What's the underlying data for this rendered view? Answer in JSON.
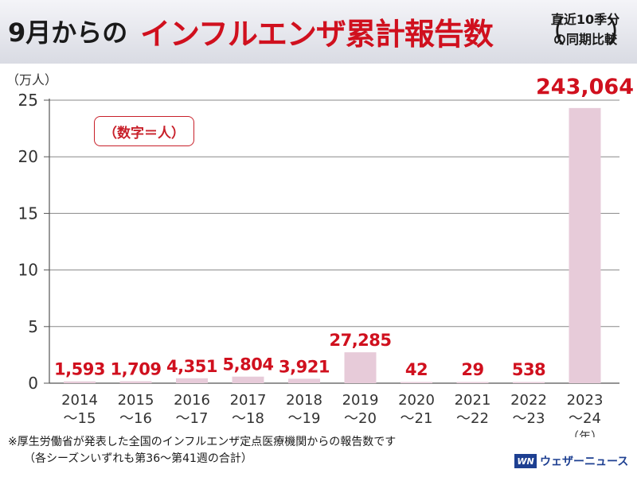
{
  "header": {
    "title_prefix": "9月からの",
    "title_main": "インフルエンザ累計報告数",
    "note_line1": "直近10季分",
    "note_line2": "の同期比較",
    "note_paren_open": "（",
    "note_paren_close": "）"
  },
  "unit_badge": "（数字＝人）",
  "chart_data": {
    "type": "bar",
    "categories": [
      [
        "2014",
        "〜15"
      ],
      [
        "2015",
        "〜16"
      ],
      [
        "2016",
        "〜17"
      ],
      [
        "2017",
        "〜18"
      ],
      [
        "2018",
        "〜19"
      ],
      [
        "2019",
        "〜20"
      ],
      [
        "2020",
        "〜21"
      ],
      [
        "2021",
        "〜22"
      ],
      [
        "2022",
        "〜23"
      ],
      [
        "2023",
        "〜24"
      ]
    ],
    "values": [
      1593,
      1709,
      4351,
      5804,
      3921,
      27285,
      42,
      29,
      538,
      243064
    ],
    "value_labels": [
      "1,593",
      "1,709",
      "4,351",
      "5,804",
      "3,921",
      "27,285",
      "42",
      "29",
      "538",
      "243,064"
    ],
    "ylabel": "（万人）",
    "xlabel": "（年）",
    "y_scale_divisor": 10000,
    "ylim": [
      0,
      25
    ],
    "yticks": [
      0,
      5,
      10,
      15,
      20,
      25
    ],
    "grid": true,
    "bar_color": "#e7cbd9",
    "label_color": "#d0101e"
  },
  "footnote": {
    "line1": "※厚生労働省が発表した全国のインフルエンザ定点医療機関からの報告数です",
    "line2": "（各シーズンいずれも第36〜第41週の合計）"
  },
  "brand": {
    "logo_text": "WN",
    "name": "ウェザーニュース",
    "color": "#1d3f91"
  }
}
